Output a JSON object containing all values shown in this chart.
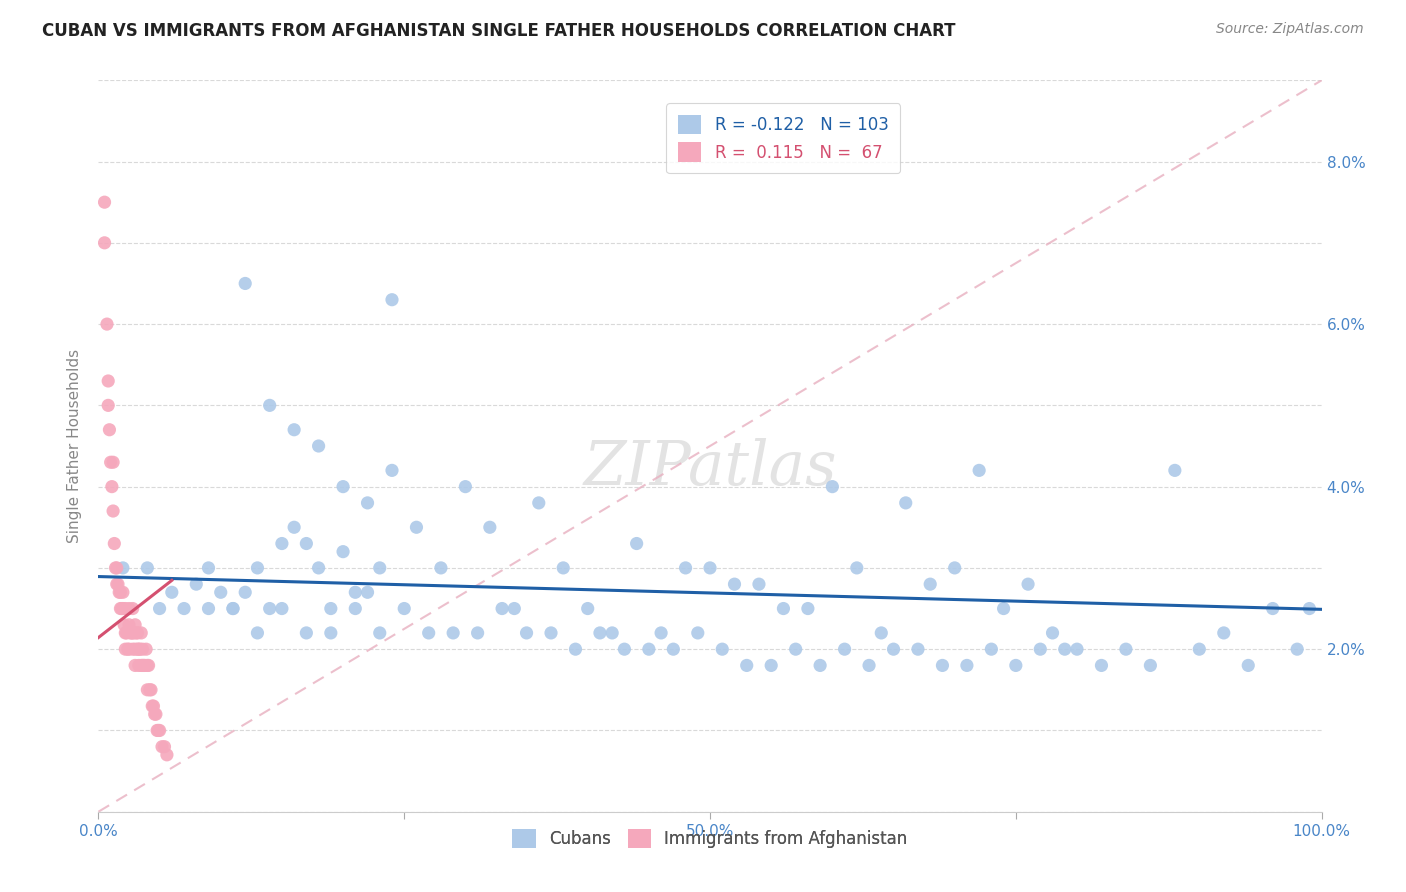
{
  "title": "CUBAN VS IMMIGRANTS FROM AFGHANISTAN SINGLE FATHER HOUSEHOLDS CORRELATION CHART",
  "source": "Source: ZipAtlas.com",
  "ylabel": "Single Father Households",
  "legend_cubans": "Cubans",
  "legend_afghan": "Immigrants from Afghanistan",
  "r_cubans": -0.122,
  "n_cubans": 103,
  "r_afghan": 0.115,
  "n_afghan": 67,
  "xlim": [
    0.0,
    1.0
  ],
  "ylim": [
    0.0,
    0.09
  ],
  "color_cubans": "#adc9e8",
  "color_afghan": "#f5a8bc",
  "line_color_cubans": "#1f5fa6",
  "line_color_afghan": "#d45070",
  "cubans_x": [
    0.02,
    0.04,
    0.06,
    0.08,
    0.09,
    0.1,
    0.11,
    0.12,
    0.13,
    0.14,
    0.15,
    0.16,
    0.17,
    0.18,
    0.19,
    0.2,
    0.21,
    0.22,
    0.23,
    0.24,
    0.12,
    0.14,
    0.16,
    0.18,
    0.2,
    0.22,
    0.24,
    0.26,
    0.28,
    0.3,
    0.32,
    0.34,
    0.36,
    0.38,
    0.4,
    0.42,
    0.44,
    0.46,
    0.48,
    0.5,
    0.52,
    0.54,
    0.56,
    0.58,
    0.6,
    0.62,
    0.64,
    0.66,
    0.68,
    0.7,
    0.72,
    0.74,
    0.76,
    0.78,
    0.8,
    0.82,
    0.84,
    0.86,
    0.88,
    0.9,
    0.92,
    0.94,
    0.96,
    0.98,
    0.99,
    0.05,
    0.07,
    0.09,
    0.11,
    0.13,
    0.15,
    0.17,
    0.19,
    0.21,
    0.23,
    0.25,
    0.27,
    0.29,
    0.31,
    0.33,
    0.35,
    0.37,
    0.39,
    0.41,
    0.43,
    0.45,
    0.47,
    0.49,
    0.51,
    0.53,
    0.55,
    0.57,
    0.59,
    0.61,
    0.63,
    0.65,
    0.67,
    0.69,
    0.71,
    0.73,
    0.75,
    0.77,
    0.79
  ],
  "cubans_y": [
    0.03,
    0.03,
    0.027,
    0.028,
    0.03,
    0.027,
    0.025,
    0.027,
    0.03,
    0.025,
    0.033,
    0.035,
    0.033,
    0.03,
    0.025,
    0.032,
    0.027,
    0.027,
    0.03,
    0.063,
    0.065,
    0.05,
    0.047,
    0.045,
    0.04,
    0.038,
    0.042,
    0.035,
    0.03,
    0.04,
    0.035,
    0.025,
    0.038,
    0.03,
    0.025,
    0.022,
    0.033,
    0.022,
    0.03,
    0.03,
    0.028,
    0.028,
    0.025,
    0.025,
    0.04,
    0.03,
    0.022,
    0.038,
    0.028,
    0.03,
    0.042,
    0.025,
    0.028,
    0.022,
    0.02,
    0.018,
    0.02,
    0.018,
    0.042,
    0.02,
    0.022,
    0.018,
    0.025,
    0.02,
    0.025,
    0.025,
    0.025,
    0.025,
    0.025,
    0.022,
    0.025,
    0.022,
    0.022,
    0.025,
    0.022,
    0.025,
    0.022,
    0.022,
    0.022,
    0.025,
    0.022,
    0.022,
    0.02,
    0.022,
    0.02,
    0.02,
    0.02,
    0.022,
    0.02,
    0.018,
    0.018,
    0.02,
    0.018,
    0.02,
    0.018,
    0.02,
    0.02,
    0.018,
    0.018,
    0.02,
    0.018,
    0.02,
    0.02
  ],
  "afghan_x": [
    0.005,
    0.005,
    0.007,
    0.008,
    0.008,
    0.009,
    0.01,
    0.011,
    0.012,
    0.012,
    0.013,
    0.014,
    0.015,
    0.015,
    0.016,
    0.017,
    0.018,
    0.018,
    0.019,
    0.02,
    0.02,
    0.021,
    0.022,
    0.022,
    0.022,
    0.023,
    0.024,
    0.025,
    0.025,
    0.025,
    0.026,
    0.027,
    0.028,
    0.028,
    0.028,
    0.029,
    0.03,
    0.03,
    0.03,
    0.031,
    0.032,
    0.032,
    0.033,
    0.033,
    0.034,
    0.035,
    0.035,
    0.036,
    0.036,
    0.037,
    0.038,
    0.039,
    0.04,
    0.04,
    0.041,
    0.042,
    0.043,
    0.044,
    0.045,
    0.046,
    0.047,
    0.048,
    0.049,
    0.05,
    0.052,
    0.054,
    0.056
  ],
  "afghan_y": [
    0.075,
    0.07,
    0.06,
    0.053,
    0.05,
    0.047,
    0.043,
    0.04,
    0.043,
    0.037,
    0.033,
    0.03,
    0.03,
    0.028,
    0.028,
    0.027,
    0.027,
    0.025,
    0.025,
    0.027,
    0.025,
    0.023,
    0.025,
    0.022,
    0.02,
    0.022,
    0.02,
    0.025,
    0.023,
    0.02,
    0.022,
    0.022,
    0.025,
    0.022,
    0.02,
    0.022,
    0.023,
    0.02,
    0.018,
    0.022,
    0.022,
    0.02,
    0.02,
    0.018,
    0.02,
    0.022,
    0.018,
    0.02,
    0.018,
    0.018,
    0.018,
    0.02,
    0.018,
    0.015,
    0.018,
    0.015,
    0.015,
    0.013,
    0.013,
    0.012,
    0.012,
    0.01,
    0.01,
    0.01,
    0.008,
    0.008,
    0.007
  ]
}
